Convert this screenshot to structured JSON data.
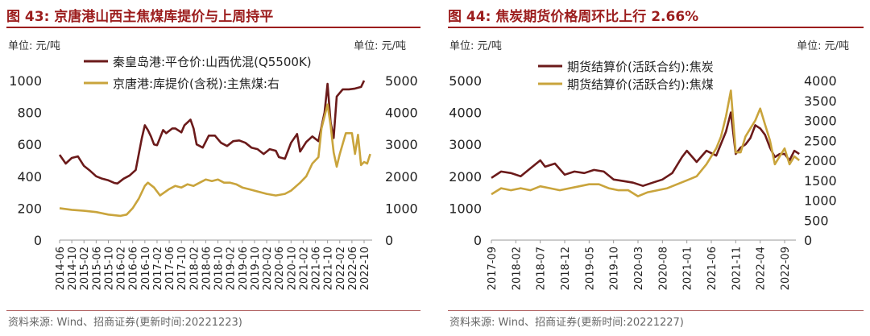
{
  "colors": {
    "title": "#9c1d1d",
    "series_dark": "#6b1a1a",
    "series_gold": "#c9a43c"
  },
  "panels": [
    {
      "title": "图 43:  京唐港山西主焦煤库提价与上周持平",
      "unit_left": "单位:  元/吨",
      "unit_right": "单位:  元/吨",
      "source": "资料来源:  Wind、招商证券(更新时间:20221223)"
    },
    {
      "title": "图 44:  焦炭期货价格周环比上行 2.66%",
      "unit_left": "单位:  元/吨",
      "unit_right": "单位:  元/吨",
      "source": "资料来源:  Wind、招商证券(更新时间:20221227)"
    }
  ],
  "chart_data": [
    {
      "type": "line",
      "x_ticks": [
        "2014-06",
        "2014-10",
        "2015-02",
        "2015-06",
        "2015-10",
        "2016-02",
        "2016-06",
        "2016-10",
        "2017-02",
        "2017-06",
        "2017-10",
        "2018-02",
        "2018-06",
        "2018-10",
        "2019-02",
        "2019-06",
        "2019-10",
        "2020-02",
        "2020-06",
        "2020-10",
        "2021-02",
        "2021-06",
        "2021-10",
        "2022-02",
        "2022-06",
        "2022-10"
      ],
      "y_left": {
        "min": 0,
        "max": 1000,
        "ticks": [
          0,
          200,
          400,
          600,
          800,
          1000
        ]
      },
      "y_right": {
        "min": 0,
        "max": 5000,
        "ticks": [
          0,
          1000,
          2000,
          3000,
          4000,
          5000
        ]
      },
      "series": [
        {
          "name": "秦皇岛港:平仓价:山西优混(Q5500K)",
          "axis": "left",
          "x": [
            "2014-06",
            "2014-08",
            "2014-10",
            "2014-12",
            "2015-02",
            "2015-04",
            "2015-06",
            "2015-08",
            "2015-10",
            "2015-12",
            "2016-01",
            "2016-03",
            "2016-05",
            "2016-07",
            "2016-09",
            "2016-10",
            "2016-11",
            "2016-12",
            "2017-01",
            "2017-02",
            "2017-04",
            "2017-05",
            "2017-07",
            "2017-08",
            "2017-10",
            "2017-11",
            "2018-01",
            "2018-02",
            "2018-03",
            "2018-05",
            "2018-07",
            "2018-09",
            "2018-11",
            "2019-01",
            "2019-03",
            "2019-05",
            "2019-07",
            "2019-09",
            "2019-11",
            "2020-01",
            "2020-03",
            "2020-05",
            "2020-06",
            "2020-08",
            "2020-10",
            "2020-12",
            "2021-01",
            "2021-03",
            "2021-05",
            "2021-07",
            "2021-09",
            "2021-10",
            "2021-11",
            "2021-12",
            "2022-01",
            "2022-03",
            "2022-05",
            "2022-07",
            "2022-09",
            "2022-10"
          ],
          "values": [
            535,
            480,
            515,
            525,
            465,
            435,
            400,
            385,
            375,
            358,
            355,
            385,
            405,
            440,
            640,
            720,
            690,
            650,
            600,
            595,
            690,
            670,
            700,
            700,
            675,
            720,
            755,
            700,
            600,
            580,
            655,
            655,
            610,
            590,
            620,
            625,
            610,
            580,
            570,
            540,
            570,
            560,
            520,
            510,
            610,
            665,
            555,
            615,
            650,
            620,
            800,
            980,
            740,
            640,
            900,
            945,
            945,
            950,
            960,
            1000
          ]
        },
        {
          "name": "京唐港:库提价(含税):主焦煤:右",
          "axis": "right",
          "x": [
            "2014-06",
            "2014-10",
            "2015-02",
            "2015-06",
            "2015-10",
            "2016-02",
            "2016-04",
            "2016-06",
            "2016-08",
            "2016-10",
            "2016-11",
            "2017-01",
            "2017-03",
            "2017-06",
            "2017-08",
            "2017-10",
            "2017-12",
            "2018-02",
            "2018-04",
            "2018-06",
            "2018-08",
            "2018-10",
            "2018-12",
            "2019-02",
            "2019-04",
            "2019-06",
            "2019-08",
            "2019-10",
            "2019-12",
            "2020-02",
            "2020-05",
            "2020-08",
            "2020-10",
            "2021-01",
            "2021-03",
            "2021-05",
            "2021-07",
            "2021-08",
            "2021-10",
            "2021-11",
            "2021-12",
            "2022-01",
            "2022-02",
            "2022-04",
            "2022-06",
            "2022-07",
            "2022-08",
            "2022-09",
            "2022-10",
            "2022-11",
            "2022-12"
          ],
          "values": [
            1000,
            950,
            920,
            880,
            800,
            760,
            800,
            1000,
            1300,
            1700,
            1800,
            1650,
            1400,
            1600,
            1700,
            1650,
            1750,
            1700,
            1800,
            1900,
            1850,
            1900,
            1800,
            1800,
            1750,
            1650,
            1600,
            1550,
            1500,
            1450,
            1400,
            1450,
            1550,
            1800,
            2000,
            2400,
            2600,
            3500,
            4250,
            3600,
            2750,
            2300,
            2700,
            3350,
            3350,
            2700,
            3300,
            2350,
            2450,
            2400,
            2700
          ]
        }
      ]
    },
    {
      "type": "line",
      "x_ticks": [
        "2017-09",
        "2018-02",
        "2018-07",
        "2018-12",
        "2019-05",
        "2019-10",
        "2020-03",
        "2020-08",
        "2021-01",
        "2021-06",
        "2021-11",
        "2022-04",
        "2022-09"
      ],
      "y_left": {
        "min": 0,
        "max": 5000,
        "ticks": [
          0,
          1000,
          2000,
          3000,
          4000,
          5000
        ]
      },
      "y_right": {
        "min": 0,
        "max": 4000,
        "ticks": [
          0,
          500,
          1000,
          1500,
          2000,
          2500,
          3000,
          3500,
          4000
        ]
      },
      "series": [
        {
          "name": "期货结算价(活跃合约):焦炭",
          "axis": "left",
          "x": [
            "2017-09",
            "2017-11",
            "2018-01",
            "2018-03",
            "2018-05",
            "2018-07",
            "2018-08",
            "2018-10",
            "2018-12",
            "2019-02",
            "2019-04",
            "2019-06",
            "2019-08",
            "2019-10",
            "2019-12",
            "2020-02",
            "2020-04",
            "2020-06",
            "2020-08",
            "2020-10",
            "2020-12",
            "2021-01",
            "2021-03",
            "2021-05",
            "2021-07",
            "2021-09",
            "2021-10",
            "2021-11",
            "2021-12",
            "2022-01",
            "2022-02",
            "2022-03",
            "2022-04",
            "2022-05",
            "2022-06",
            "2022-07",
            "2022-08",
            "2022-09",
            "2022-10",
            "2022-11",
            "2022-12"
          ],
          "values": [
            1950,
            2150,
            2100,
            2000,
            2250,
            2500,
            2300,
            2400,
            2050,
            2150,
            2100,
            2200,
            2150,
            1900,
            1850,
            1800,
            1700,
            1800,
            1900,
            2100,
            2600,
            2800,
            2450,
            2800,
            2650,
            3400,
            4000,
            2700,
            2900,
            3000,
            3200,
            3600,
            3500,
            3300,
            2900,
            2600,
            2700,
            2700,
            2500,
            2800,
            2700
          ]
        },
        {
          "name": "期货结算价(活跃合约):焦煤",
          "axis": "right",
          "x": [
            "2017-09",
            "2017-11",
            "2018-01",
            "2018-03",
            "2018-05",
            "2018-07",
            "2018-09",
            "2018-11",
            "2019-01",
            "2019-03",
            "2019-05",
            "2019-07",
            "2019-09",
            "2019-11",
            "2020-01",
            "2020-03",
            "2020-05",
            "2020-07",
            "2020-09",
            "2020-11",
            "2021-01",
            "2021-03",
            "2021-05",
            "2021-07",
            "2021-08",
            "2021-09",
            "2021-10",
            "2021-11",
            "2021-12",
            "2022-01",
            "2022-02",
            "2022-03",
            "2022-04",
            "2022-05",
            "2022-06",
            "2022-07",
            "2022-08",
            "2022-09",
            "2022-10",
            "2022-11",
            "2022-12"
          ],
          "values": [
            1150,
            1300,
            1250,
            1300,
            1250,
            1350,
            1300,
            1250,
            1300,
            1350,
            1400,
            1400,
            1300,
            1250,
            1250,
            1100,
            1200,
            1250,
            1300,
            1400,
            1500,
            1600,
            1900,
            2300,
            2600,
            3100,
            3750,
            2200,
            2200,
            2600,
            2800,
            3000,
            3300,
            2900,
            2500,
            1900,
            2100,
            2300,
            1900,
            2100,
            2000
          ]
        }
      ]
    }
  ]
}
